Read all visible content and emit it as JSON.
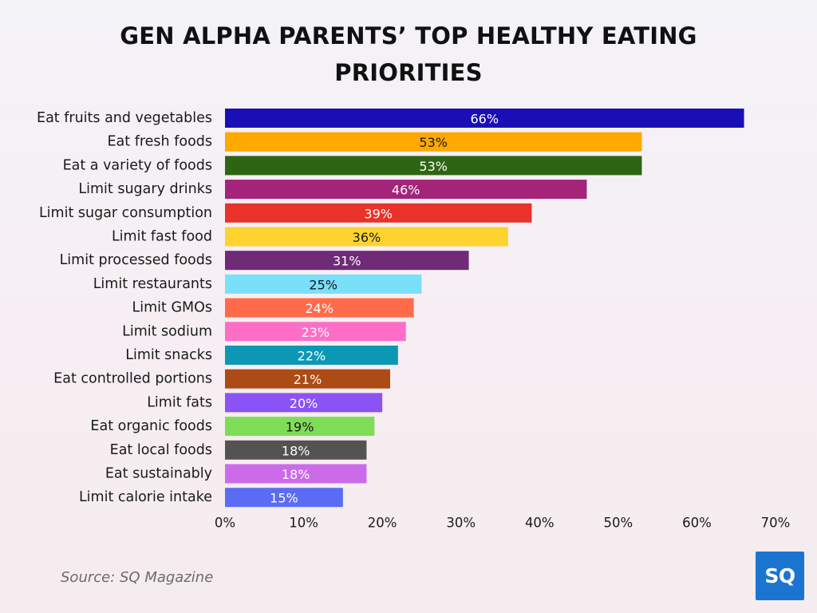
{
  "title_lines": [
    "GEN ALPHA PARENTS’ TOP HEALTHY EATING",
    "PRIORITIES"
  ],
  "source": "Source: SQ Magazine",
  "logo_text": "SQ",
  "logo_color": "#1b75d0",
  "chart_data": {
    "type": "bar",
    "orientation": "horizontal",
    "title": "GEN ALPHA PARENTS’ TOP HEALTHY EATING PRIORITIES",
    "xlabel": "",
    "ylabel": "",
    "xlim": [
      0,
      70
    ],
    "grid": false,
    "value_suffix": "%",
    "ticks": [
      "0%",
      "10%",
      "20%",
      "30%",
      "40%",
      "50%",
      "60%",
      "70%"
    ],
    "categories": [
      "Eat fruits and vegetables",
      "Eat fresh foods",
      "Eat a variety of foods",
      "Limit sugary drinks",
      "Limit sugar consumption",
      "Limit fast food",
      "Limit processed foods",
      "Limit restaurants",
      "Limit GMOs",
      "Limit sodium",
      "Limit snacks",
      "Eat controlled portions",
      "Limit fats",
      "Eat organic foods",
      "Eat local foods",
      "Eat sustainably",
      "Limit calorie intake"
    ],
    "values": [
      66,
      53,
      53,
      46,
      39,
      36,
      31,
      25,
      24,
      23,
      22,
      21,
      20,
      19,
      18,
      18,
      15
    ],
    "colors": [
      "#1a0fb4",
      "#fea900",
      "#2e6512",
      "#a32479",
      "#e8322a",
      "#fed22f",
      "#6f2b76",
      "#7adff9",
      "#ff6b4a",
      "#ff6ec6",
      "#0c98b4",
      "#ac4b15",
      "#8b53f5",
      "#7fdc57",
      "#535353",
      "#cb6bea",
      "#5a6cf6"
    ],
    "label_colors": [
      "#ffffff",
      "#1a1a1a",
      "#ffffff",
      "#ffffff",
      "#ffffff",
      "#1a1a1a",
      "#ffffff",
      "#1a1a1a",
      "#ffffff",
      "#ffffff",
      "#ffffff",
      "#ffffff",
      "#ffffff",
      "#1a1a1a",
      "#ffffff",
      "#ffffff",
      "#ffffff"
    ]
  }
}
